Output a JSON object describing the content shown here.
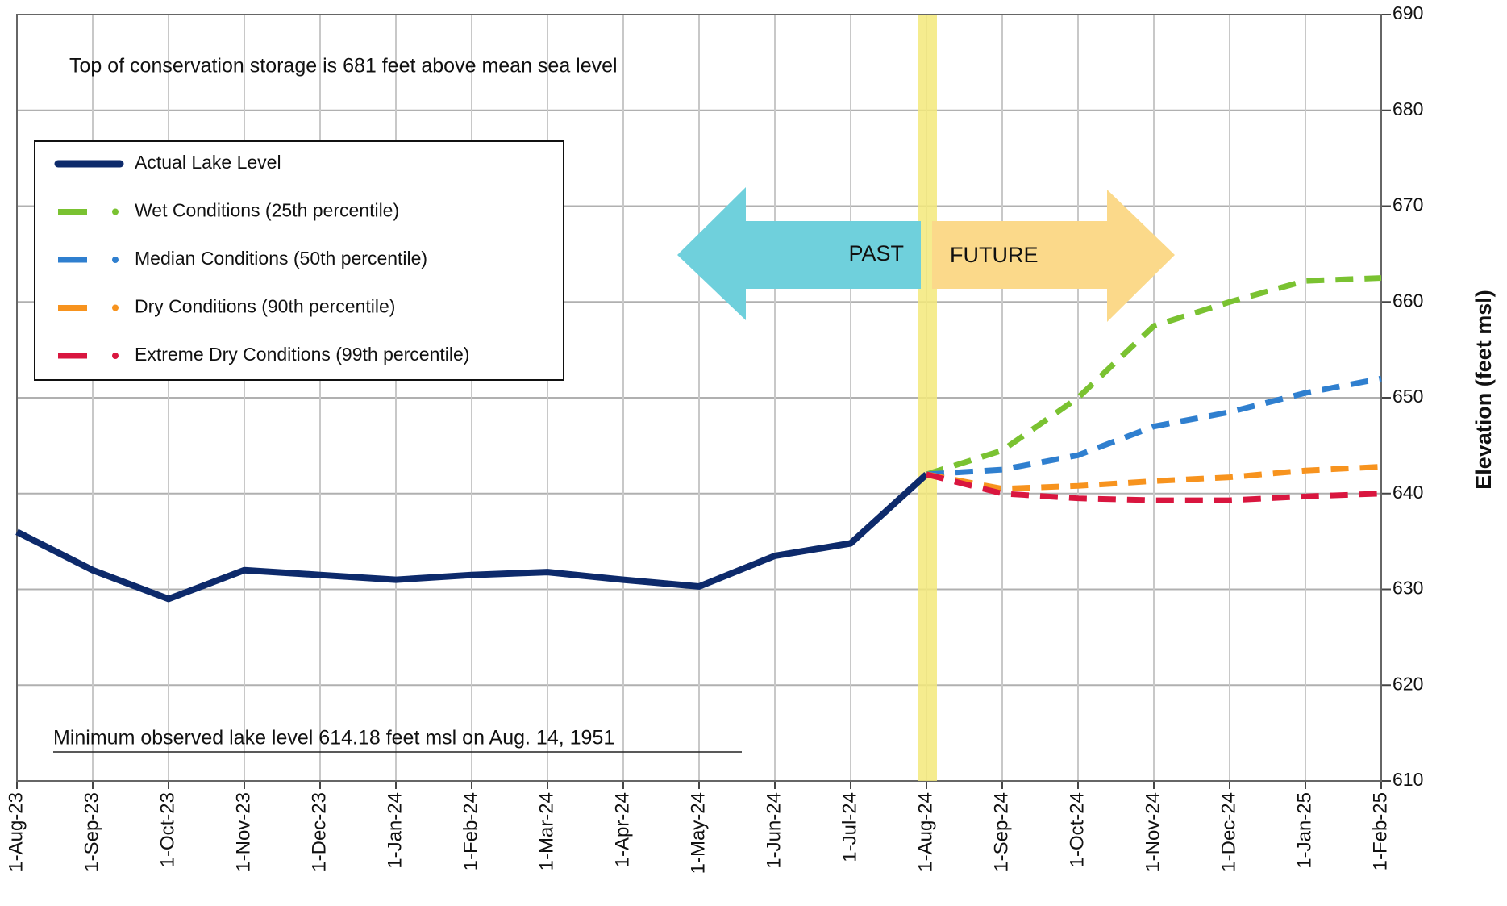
{
  "chart_data": {
    "type": "line",
    "y_axis_label": "Elevation (feet msl)",
    "annotations": [
      "Top of conservation storage is 681 feet above mean sea level",
      "Minimum observed lake level 614.18 feet msl on Aug. 14, 1951",
      "PAST",
      "FUTURE"
    ],
    "categories": [
      "1-Aug-23",
      "1-Sep-23",
      "1-Oct-23",
      "1-Nov-23",
      "1-Dec-23",
      "1-Jan-24",
      "1-Feb-24",
      "1-Mar-24",
      "1-Apr-24",
      "1-May-24",
      "1-Jun-24",
      "1-Jul-24",
      "1-Aug-24",
      "1-Sep-24",
      "1-Oct-24",
      "1-Nov-24",
      "1-Dec-24",
      "1-Jan-25",
      "1-Feb-25"
    ],
    "series": [
      {
        "name": "Actual Lake Level",
        "color": "#0d2a6b",
        "dashed": false,
        "values": [
          636,
          632,
          629,
          632,
          631.5,
          631,
          631.5,
          631.8,
          631,
          630.3,
          633.5,
          634.8,
          642,
          null,
          null,
          null,
          null,
          null,
          null
        ]
      },
      {
        "name": "Wet Conditions (25th percentile)",
        "color": "#7ac231",
        "dashed": true,
        "values": [
          null,
          null,
          null,
          null,
          null,
          null,
          null,
          null,
          null,
          null,
          null,
          null,
          642,
          644.5,
          650,
          657.5,
          660,
          662.2,
          662.5
        ]
      },
      {
        "name": "Median Conditions (50th percentile)",
        "color": "#2f7fcf",
        "dashed": true,
        "values": [
          null,
          null,
          null,
          null,
          null,
          null,
          null,
          null,
          null,
          null,
          null,
          null,
          642,
          642.5,
          644,
          647,
          648.5,
          650.5,
          652
        ]
      },
      {
        "name": "Dry Conditions (90th percentile)",
        "color": "#f7931e",
        "dashed": true,
        "values": [
          null,
          null,
          null,
          null,
          null,
          null,
          null,
          null,
          null,
          null,
          null,
          null,
          642,
          640.5,
          640.8,
          641.3,
          641.7,
          642.4,
          642.8
        ]
      },
      {
        "name": "Extreme Dry Conditions (99th percentile)",
        "color": "#d9163f",
        "dashed": true,
        "values": [
          null,
          null,
          null,
          null,
          null,
          null,
          null,
          null,
          null,
          null,
          null,
          null,
          642,
          640,
          639.5,
          639.3,
          639.3,
          639.7,
          640
        ]
      }
    ],
    "ylim": [
      610,
      690
    ],
    "yticks": [
      610,
      620,
      630,
      640,
      650,
      660,
      670,
      680,
      690
    ],
    "grid": true,
    "legend": "upper left"
  }
}
